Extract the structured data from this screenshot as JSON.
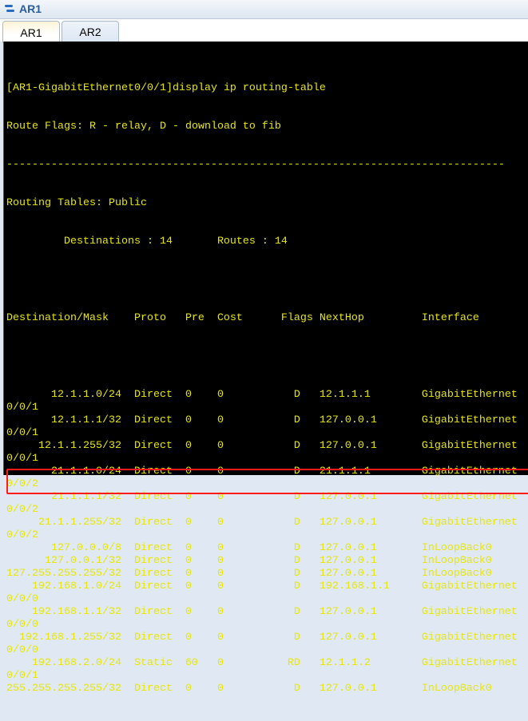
{
  "window": {
    "title": "AR1",
    "icon": "router-icon"
  },
  "tabs": [
    {
      "label": "AR1",
      "active": true
    },
    {
      "label": "AR2",
      "active": false
    }
  ],
  "terminal": {
    "command_line": "[AR1-GigabitEthernet0/0/1]display ip routing-table",
    "flags_line": "Route Flags: R - relay, D - download to fib",
    "separator": "------------------------------------------------------------------------------",
    "tables_line": "Routing Tables: Public",
    "destinations_label": "Destinations : 14",
    "routes_label": "Routes : 14",
    "headers": {
      "dest": "Destination/Mask",
      "proto": "Proto",
      "pre": "Pre",
      "cost": "Cost",
      "flags": "Flags",
      "nexthop": "NextHop",
      "iface": "Interface"
    },
    "rows": [
      {
        "dest": "12.1.1.0/24",
        "proto": "Direct",
        "pre": "0",
        "cost": "0",
        "flags": "D",
        "nexthop": "12.1.1.1",
        "iface": "GigabitEthernet",
        "wrap": "0/0/1"
      },
      {
        "dest": "12.1.1.1/32",
        "proto": "Direct",
        "pre": "0",
        "cost": "0",
        "flags": "D",
        "nexthop": "127.0.0.1",
        "iface": "GigabitEthernet",
        "wrap": "0/0/1"
      },
      {
        "dest": "12.1.1.255/32",
        "proto": "Direct",
        "pre": "0",
        "cost": "0",
        "flags": "D",
        "nexthop": "127.0.0.1",
        "iface": "GigabitEthernet",
        "wrap": "0/0/1"
      },
      {
        "dest": "21.1.1.0/24",
        "proto": "Direct",
        "pre": "0",
        "cost": "0",
        "flags": "D",
        "nexthop": "21.1.1.1",
        "iface": "GigabitEthernet",
        "wrap": "0/0/2"
      },
      {
        "dest": "21.1.1.1/32",
        "proto": "Direct",
        "pre": "0",
        "cost": "0",
        "flags": "D",
        "nexthop": "127.0.0.1",
        "iface": "GigabitEthernet",
        "wrap": "0/0/2"
      },
      {
        "dest": "21.1.1.255/32",
        "proto": "Direct",
        "pre": "0",
        "cost": "0",
        "flags": "D",
        "nexthop": "127.0.0.1",
        "iface": "GigabitEthernet",
        "wrap": "0/0/2"
      },
      {
        "dest": "127.0.0.0/8",
        "proto": "Direct",
        "pre": "0",
        "cost": "0",
        "flags": "D",
        "nexthop": "127.0.0.1",
        "iface": "InLoopBack0"
      },
      {
        "dest": "127.0.0.1/32",
        "proto": "Direct",
        "pre": "0",
        "cost": "0",
        "flags": "D",
        "nexthop": "127.0.0.1",
        "iface": "InLoopBack0"
      },
      {
        "dest": "127.255.255.255/32",
        "proto": "Direct",
        "pre": "0",
        "cost": "0",
        "flags": "D",
        "nexthop": "127.0.0.1",
        "iface": "InLoopBack0"
      },
      {
        "dest": "192.168.1.0/24",
        "proto": "Direct",
        "pre": "0",
        "cost": "0",
        "flags": "D",
        "nexthop": "192.168.1.1",
        "iface": "GigabitEthernet",
        "wrap": "0/0/0"
      },
      {
        "dest": "192.168.1.1/32",
        "proto": "Direct",
        "pre": "0",
        "cost": "0",
        "flags": "D",
        "nexthop": "127.0.0.1",
        "iface": "GigabitEthernet",
        "wrap": "0/0/0"
      },
      {
        "dest": "192.168.1.255/32",
        "proto": "Direct",
        "pre": "0",
        "cost": "0",
        "flags": "D",
        "nexthop": "127.0.0.1",
        "iface": "GigabitEthernet",
        "wrap": "0/0/0"
      },
      {
        "dest": "192.168.2.0/24",
        "proto": "Static",
        "pre": "60",
        "cost": "0",
        "flags": "RD",
        "nexthop": "12.1.1.2",
        "iface": "GigabitEthernet",
        "wrap": "0/0/1",
        "highlighted": true
      },
      {
        "dest": "255.255.255.255/32",
        "proto": "Direct",
        "pre": "0",
        "cost": "0",
        "flags": "D",
        "nexthop": "127.0.0.1",
        "iface": "InLoopBack0"
      }
    ]
  },
  "colors": {
    "terminal_text": "#e8e800",
    "terminal_bg": "#000000",
    "highlight_border": "#ff1a1a"
  }
}
